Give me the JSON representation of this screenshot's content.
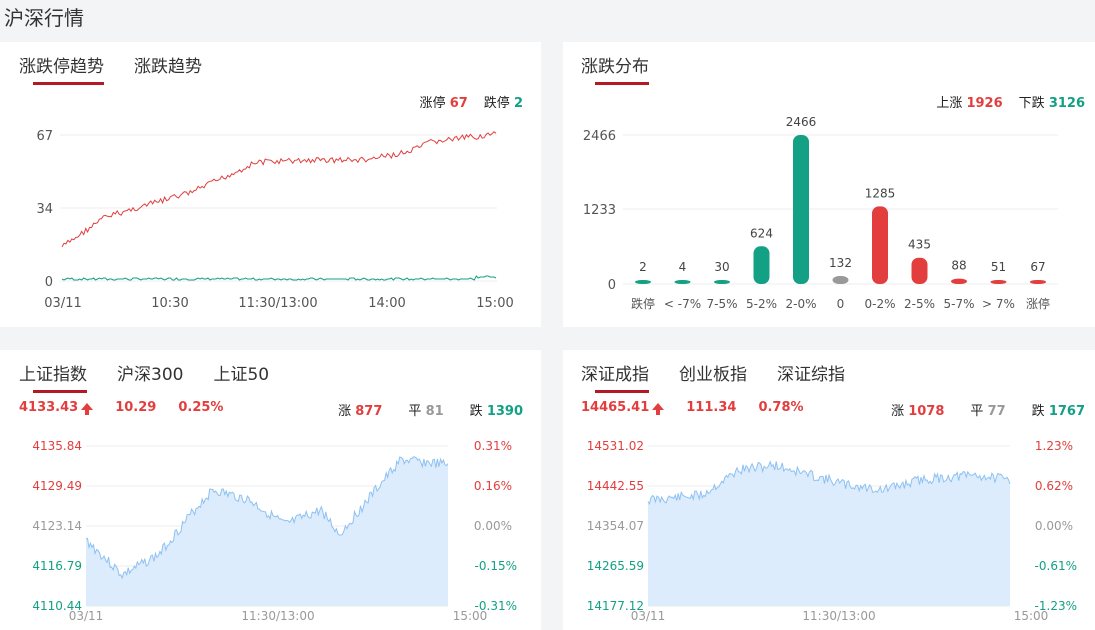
{
  "page_title": "沪深行情",
  "trend": {
    "tabs": [
      "涨跌停趋势",
      "涨跌趋势"
    ],
    "limit_up_label": "涨停",
    "limit_up": "67",
    "limit_down_label": "跌停",
    "limit_down": "2",
    "y_ticks": [
      "67",
      "34",
      "0"
    ],
    "x_ticks": [
      "03/11",
      "10:30",
      "11:30/13:00",
      "14:00",
      "15:00"
    ],
    "colors": {
      "up": "#e23e3e",
      "down": "#13a084"
    }
  },
  "dist": {
    "tab": "涨跌分布",
    "up_label": "上涨",
    "up": "1926",
    "down_label": "下跌",
    "down": "3126",
    "chart_data": {
      "type": "bar",
      "categories": [
        "跌停",
        "< -7%",
        "7-5%",
        "5-2%",
        "2-0%",
        "0",
        "0-2%",
        "2-5%",
        "5-7%",
        "> 7%",
        "涨停"
      ],
      "values": [
        2,
        4,
        30,
        624,
        2466,
        132,
        1285,
        435,
        88,
        51,
        67
      ],
      "y_ticks": [
        "2466",
        "1233",
        "0"
      ],
      "ylim": [
        0,
        2466
      ],
      "colors": [
        "#13a084",
        "#13a084",
        "#13a084",
        "#13a084",
        "#13a084",
        "#999999",
        "#e23e3e",
        "#e23e3e",
        "#e23e3e",
        "#e23e3e",
        "#e23e3e"
      ]
    }
  },
  "sh": {
    "tabs": [
      "上证指数",
      "沪深300",
      "上证50"
    ],
    "price": "4133.43",
    "change": "10.29",
    "pct": "0.25%",
    "up_label": "涨",
    "up": "877",
    "flat_label": "平",
    "flat": "81",
    "down_label": "跌",
    "down": "1390",
    "left_ticks": [
      "4135.84",
      "4129.49",
      "4123.14",
      "4116.79",
      "4110.44"
    ],
    "right_ticks": [
      "0.31%",
      "0.16%",
      "0.00%",
      "-0.15%",
      "-0.31%"
    ],
    "x_ticks": [
      "03/11",
      "11:30/13:00",
      "15:00"
    ]
  },
  "sz": {
    "tabs": [
      "深证成指",
      "创业板指",
      "深证综指"
    ],
    "price": "14465.41",
    "change": "111.34",
    "pct": "0.78%",
    "up_label": "涨",
    "up": "1078",
    "flat_label": "平",
    "flat": "77",
    "down_label": "跌",
    "down": "1767",
    "left_ticks": [
      "14531.02",
      "14442.55",
      "14354.07",
      "14265.59",
      "14177.12"
    ],
    "right_ticks": [
      "1.23%",
      "0.62%",
      "0.00%",
      "-0.61%",
      "-1.23%"
    ],
    "x_ticks": [
      "03/11",
      "11:30/13:00",
      "15:00"
    ]
  }
}
